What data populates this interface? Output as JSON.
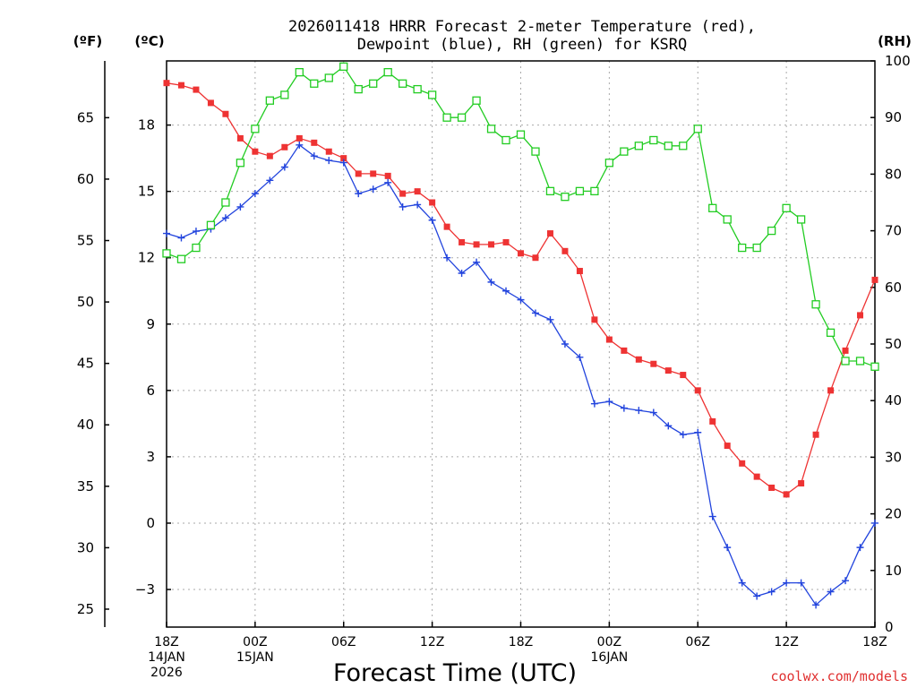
{
  "chart_data": {
    "type": "line",
    "title_line1": "2026011418 HRRR Forecast 2-meter Temperature (red),",
    "title_line2": "Dewpoint (blue), RH (green) for KSRQ",
    "xlabel": "Forecast Time (UTC)",
    "credit": "coolwx.com/models",
    "unit_f": "(ºF)",
    "unit_c": "(ºC)",
    "unit_rh": "(RH)",
    "x": [
      0,
      1,
      2,
      3,
      4,
      5,
      6,
      7,
      8,
      9,
      10,
      11,
      12,
      13,
      14,
      15,
      16,
      17,
      18,
      19,
      20,
      21,
      22,
      23,
      24,
      25,
      26,
      27,
      28,
      29,
      30,
      31,
      32,
      33,
      34,
      35,
      36,
      37,
      38,
      39,
      40,
      41,
      42,
      43,
      44,
      45,
      46,
      47,
      48
    ],
    "xlim": [
      0,
      48
    ],
    "x_ticks": [
      {
        "x": 0,
        "lines": [
          "18Z",
          "14JAN",
          "2026"
        ]
      },
      {
        "x": 6,
        "lines": [
          "00Z",
          "15JAN"
        ]
      },
      {
        "x": 12,
        "lines": [
          "06Z"
        ]
      },
      {
        "x": 18,
        "lines": [
          "12Z"
        ]
      },
      {
        "x": 24,
        "lines": [
          "18Z"
        ]
      },
      {
        "x": 30,
        "lines": [
          "00Z",
          "16JAN"
        ]
      },
      {
        "x": 36,
        "lines": [
          "06Z"
        ]
      },
      {
        "x": 42,
        "lines": [
          "12Z"
        ]
      },
      {
        "x": 48,
        "lines": [
          "18Z"
        ]
      }
    ],
    "ylim_c": [
      -4.7,
      20.9
    ],
    "c_ticks": [
      -3,
      0,
      3,
      6,
      9,
      12,
      15,
      18
    ],
    "c_tick_labels": [
      "−3",
      "0",
      "3",
      "6",
      "9",
      "12",
      "15",
      "18"
    ],
    "f_ticks": [
      25,
      30,
      35,
      40,
      45,
      50,
      55,
      60,
      65
    ],
    "rh_lim": [
      0,
      100
    ],
    "rh_ticks": [
      0,
      10,
      20,
      30,
      40,
      50,
      60,
      70,
      80,
      90,
      100
    ],
    "series": [
      {
        "name": "Temperature (°C)",
        "axis": "c",
        "color": "#ee3333",
        "marker": "filled-square",
        "values": [
          19.9,
          19.8,
          19.6,
          19.0,
          18.5,
          17.4,
          16.8,
          16.6,
          17.0,
          17.4,
          17.2,
          16.8,
          16.5,
          15.8,
          15.8,
          15.7,
          14.9,
          15.0,
          14.5,
          13.4,
          12.7,
          12.6,
          12.6,
          12.7,
          12.2,
          12.0,
          13.1,
          12.3,
          11.4,
          9.2,
          8.3,
          7.8,
          7.4,
          7.2,
          6.9,
          6.7,
          6.0,
          4.6,
          3.5,
          2.7,
          2.1,
          1.6,
          1.3,
          1.8,
          4.0,
          6.0,
          7.8,
          9.4,
          11.0
        ]
      },
      {
        "name": "Dewpoint (°C)",
        "axis": "c",
        "color": "#2244dd",
        "marker": "plus",
        "values": [
          13.1,
          12.9,
          13.2,
          13.3,
          13.8,
          14.3,
          14.9,
          15.5,
          16.1,
          17.1,
          16.6,
          16.4,
          16.3,
          14.9,
          15.1,
          15.4,
          14.3,
          14.4,
          13.7,
          12.0,
          11.3,
          11.8,
          10.9,
          10.5,
          10.1,
          9.5,
          9.2,
          8.1,
          7.5,
          5.4,
          5.5,
          5.2,
          5.1,
          5.0,
          4.4,
          4.0,
          4.1,
          0.3,
          -1.1,
          -2.7,
          -3.3,
          -3.1,
          -2.7,
          -2.7,
          -3.7,
          -3.1,
          -2.6,
          -1.1,
          0.0
        ]
      },
      {
        "name": "RH (%)",
        "axis": "rh",
        "color": "#22cc22",
        "marker": "open-square",
        "values": [
          66,
          65,
          67,
          71,
          75,
          82,
          88,
          93,
          94,
          98,
          96,
          97,
          99,
          95,
          96,
          98,
          96,
          95,
          94,
          90,
          90,
          93,
          88,
          86,
          87,
          84,
          77,
          76,
          77,
          77,
          82,
          84,
          85,
          86,
          85,
          85,
          88,
          74,
          72,
          67,
          67,
          70,
          74,
          72,
          57,
          52,
          47,
          47,
          46
        ]
      }
    ]
  }
}
